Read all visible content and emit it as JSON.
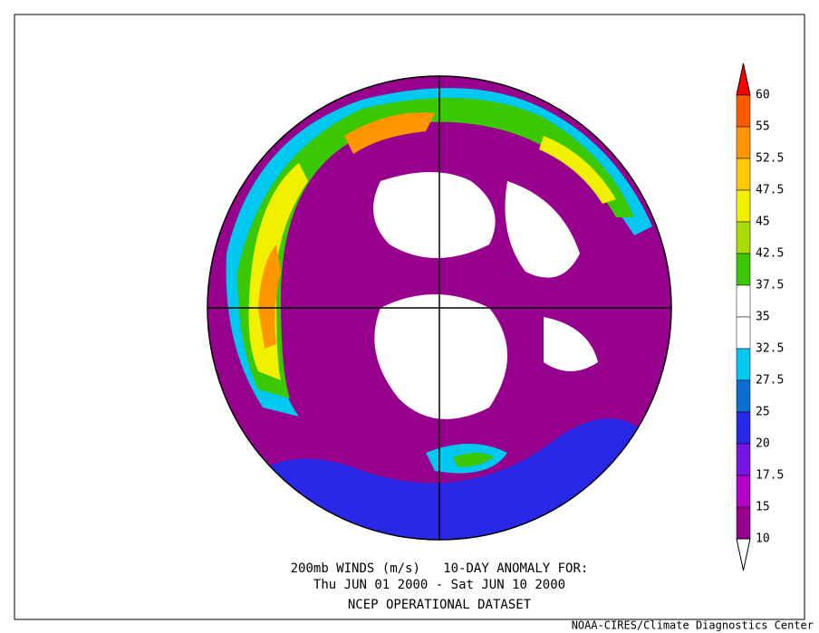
{
  "colorbar": {
    "labels": [
      60,
      55,
      52.5,
      47.5,
      45,
      42.5,
      37.5,
      35,
      32.5,
      27.5,
      25,
      20,
      17.5,
      15,
      10
    ],
    "colors": [
      "#ff0000",
      "#ff5a00",
      "#ff9600",
      "#ffc800",
      "#f0f000",
      "#a8dc00",
      "#3cc800",
      "#ffffff",
      "#ffffff",
      "#00c8f0",
      "#0a6ed2",
      "#2828e6",
      "#7814e6",
      "#b400c8",
      "#96008c",
      "#ffffff"
    ]
  },
  "caption": {
    "line1": "200mb WINDS (m/s)   10-DAY ANOMALY FOR:",
    "line2": "Thu JUN 01 2000 - Sat JUN 10 2000",
    "line3": "NCEP OPERATIONAL DATASET"
  },
  "credit": "NOAA-CIRES/Climate Diagnostics Center"
}
